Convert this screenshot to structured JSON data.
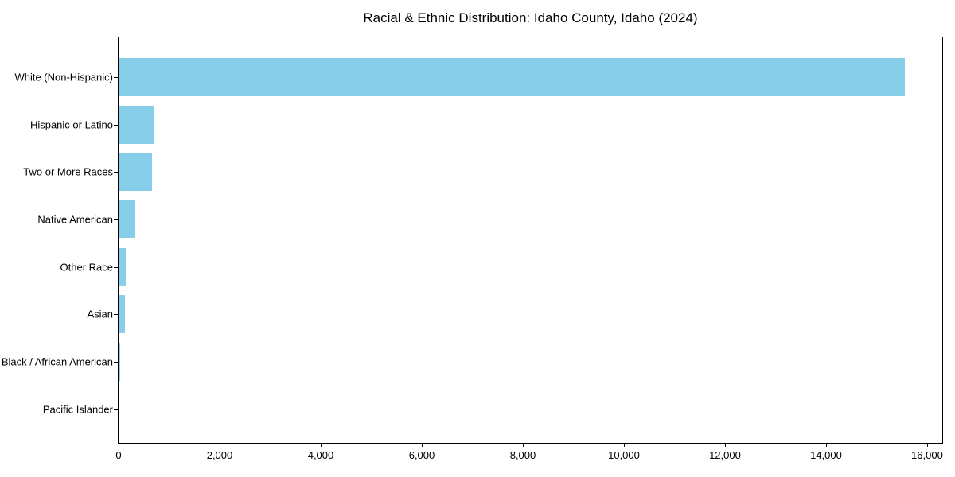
{
  "chart_data": {
    "type": "bar",
    "orientation": "horizontal",
    "title": "Racial & Ethnic Distribution: Idaho County, Idaho (2024)",
    "categories": [
      "White (Non-Hispanic)",
      "Hispanic or Latino",
      "Two or More Races",
      "Native American",
      "Other Race",
      "Asian",
      "Black / African American",
      "Pacific Islander"
    ],
    "values": [
      15560,
      690,
      660,
      335,
      140,
      120,
      25,
      5
    ],
    "xlabel": "",
    "ylabel": "",
    "xlim": [
      0,
      16300
    ],
    "x_ticks": [
      0,
      2000,
      4000,
      6000,
      8000,
      10000,
      12000,
      14000,
      16000
    ],
    "x_tick_labels": [
      "0",
      "2,000",
      "4,000",
      "6,000",
      "8,000",
      "10,000",
      "12,000",
      "14,000",
      "16,000"
    ],
    "bar_color": "#87CEEB",
    "background": "#FFFFFF",
    "text_color": "#000000",
    "grid": false,
    "legend_position": "none"
  }
}
